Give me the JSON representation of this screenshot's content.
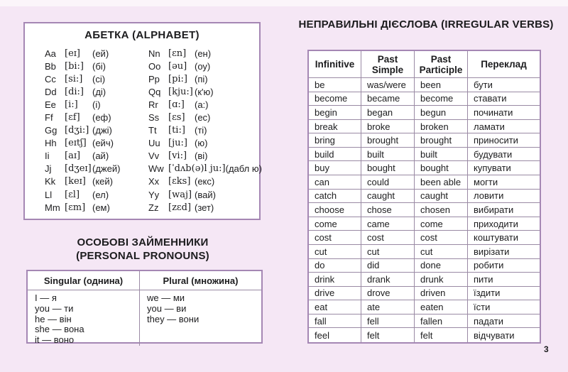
{
  "page": {
    "number": "3"
  },
  "alphabet": {
    "title": "АБЕТКА (ALPHABET)",
    "columns": [
      {
        "entries": [
          {
            "letter": "Aa",
            "ipa": "[eɪ]",
            "pron": "(ей)"
          },
          {
            "letter": "Bb",
            "ipa": "[bi:]",
            "pron": "(бі)"
          },
          {
            "letter": "Cc",
            "ipa": "[si:]",
            "pron": "(сі)"
          },
          {
            "letter": "Dd",
            "ipa": "[di:]",
            "pron": "(ді)"
          },
          {
            "letter": "Ee",
            "ipa": "[i:]",
            "pron": "(і)"
          },
          {
            "letter": "Ff",
            "ipa": "[ɛf]",
            "pron": "(еф)"
          },
          {
            "letter": "Gg",
            "ipa": "[dʒi:]",
            "pron": "(джі)"
          },
          {
            "letter": "Hh",
            "ipa": "[eɪtʃ]",
            "pron": "(ейч)"
          },
          {
            "letter": "Ii",
            "ipa": "[aɪ]",
            "pron": "(ай)"
          },
          {
            "letter": "Jj",
            "ipa": "[dʒeɪ]",
            "pron": "(джей)"
          },
          {
            "letter": "Kk",
            "ipa": "[keɪ]",
            "pron": "(кей)"
          },
          {
            "letter": "Ll",
            "ipa": "[ɛl]",
            "pron": "(ел)"
          },
          {
            "letter": "Mm",
            "ipa": "[ɛm]",
            "pron": "(ем)"
          }
        ]
      },
      {
        "entries": [
          {
            "letter": "Nn",
            "ipa": "[ɛn]",
            "pron": "(ен)"
          },
          {
            "letter": "Oo",
            "ipa": "[əu]",
            "pron": "(оу)"
          },
          {
            "letter": "Pp",
            "ipa": "[pi:]",
            "pron": "(пі)"
          },
          {
            "letter": "Qq",
            "ipa": "[kju:]",
            "pron": "(к'ю)"
          },
          {
            "letter": "Rr",
            "ipa": "[ɑ:]",
            "pron": "(а:)"
          },
          {
            "letter": "Ss",
            "ipa": "[ɛs]",
            "pron": "(ес)"
          },
          {
            "letter": "Tt",
            "ipa": "[ti:]",
            "pron": "(ті)"
          },
          {
            "letter": "Uu",
            "ipa": "[ju:]",
            "pron": "(ю)"
          },
          {
            "letter": "Vv",
            "ipa": "[vi:]",
            "pron": "(ві)"
          },
          {
            "letter": "Ww",
            "ipa": "[ˈdʌb(ə)l ju:]",
            "pron": "(дабл ю)"
          },
          {
            "letter": "Xx",
            "ipa": "[ɛks]",
            "pron": "(екс)"
          },
          {
            "letter": "Yy",
            "ipa": "[waj]",
            "pron": "(вай)"
          },
          {
            "letter": "Zz",
            "ipa": "[zɛd]",
            "pron": "(зет)"
          }
        ]
      }
    ]
  },
  "pronouns": {
    "title_line1": "ОСОБОВІ ЗАЙМЕННИКИ",
    "title_line2": "(PERSONAL PRONOUNS)",
    "headers": [
      "Singular (однина)",
      "Plural (множина)"
    ],
    "singular": [
      "I — я",
      "you — ти",
      "he — він",
      "she — вона",
      "it — воно"
    ],
    "plural": [
      "we — ми",
      "you — ви",
      "they — вони"
    ]
  },
  "verbs": {
    "title": "НЕПРАВИЛЬНІ ДІЄСЛОВА (IRREGULAR VERBS)",
    "headers": [
      "Infinitive",
      "Past Simple",
      "Past Participle",
      "Переклад"
    ],
    "rows": [
      [
        "be",
        "was/were",
        "been",
        "бути"
      ],
      [
        "become",
        "became",
        "become",
        "ставати"
      ],
      [
        "begin",
        "began",
        "begun",
        "починати"
      ],
      [
        "break",
        "broke",
        "broken",
        "ламати"
      ],
      [
        "bring",
        "brought",
        "brought",
        "приносити"
      ],
      [
        "build",
        "built",
        "built",
        "будувати"
      ],
      [
        "buy",
        "bought",
        "bought",
        "купувати"
      ],
      [
        "can",
        "could",
        "been able",
        "могти"
      ],
      [
        "catch",
        "caught",
        "caught",
        "ловити"
      ],
      [
        "choose",
        "chose",
        "chosen",
        "вибирати"
      ],
      [
        "come",
        "came",
        "come",
        "приходити"
      ],
      [
        "cost",
        "cost",
        "cost",
        "коштувати"
      ],
      [
        "cut",
        "cut",
        "cut",
        "вирізати"
      ],
      [
        "do",
        "did",
        "done",
        "робити"
      ],
      [
        "drink",
        "drank",
        "drunk",
        "пити"
      ],
      [
        "drive",
        "drove",
        "driven",
        "їздити"
      ],
      [
        "eat",
        "ate",
        "eaten",
        "їсти"
      ],
      [
        "fall",
        "fell",
        "fallen",
        "падати"
      ],
      [
        "feel",
        "felt",
        "felt",
        "відчувати"
      ]
    ]
  }
}
